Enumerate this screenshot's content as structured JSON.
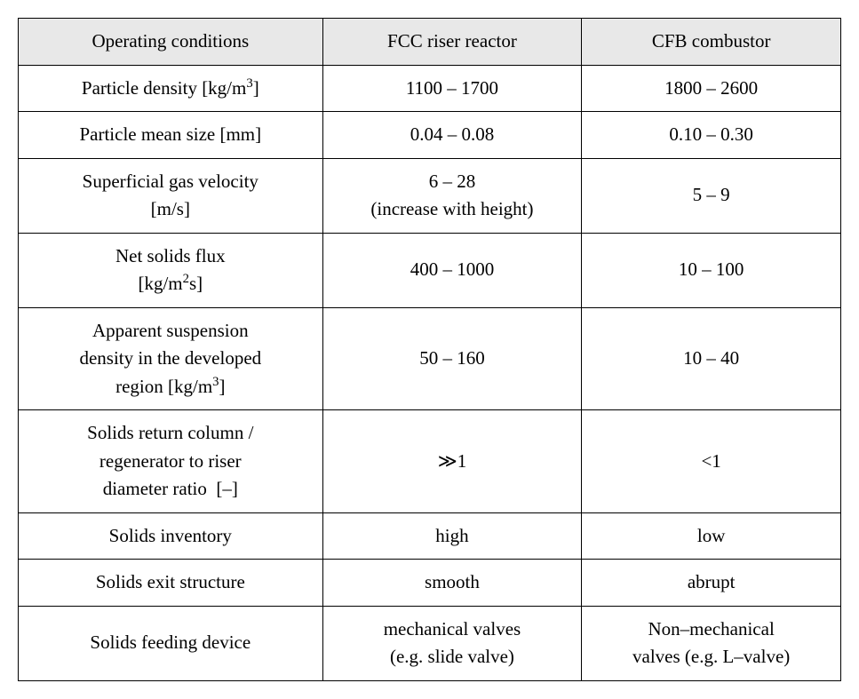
{
  "table": {
    "background_color": "#ffffff",
    "header_bg": "#e8e8e8",
    "border_color": "#000000",
    "font_family": "Times New Roman",
    "font_size": 21,
    "columns": [
      {
        "label": "Operating conditions",
        "width_pct": 37
      },
      {
        "label": "FCC riser reactor",
        "width_pct": 31.5
      },
      {
        "label": "CFB combustor",
        "width_pct": 31.5
      }
    ],
    "rows": [
      {
        "label_html": "Particle density [kg/m<span class=\"sup\">3</span>]",
        "fcc": "1100 – 1700",
        "cfb": "1800 – 2600"
      },
      {
        "label_html": "Particle mean size [mm]",
        "fcc": "0.04 – 0.08",
        "cfb": "0.10 – 0.30"
      },
      {
        "label_html": "Superficial gas velocity<br>[m/s]",
        "fcc": "6 – 28<br>(increase with height)",
        "cfb": "5 – 9"
      },
      {
        "label_html": "Net solids flux<br>[kg/m<span class=\"sup\">2</span>s]",
        "fcc": "400 – 1000",
        "cfb": "10 – 100"
      },
      {
        "label_html": "Apparent suspension<br>density in the developed<br>region [kg/m<span class=\"sup\">3</span>]",
        "fcc": "50 – 160",
        "cfb": "10 – 40"
      },
      {
        "label_html": "Solids return column /<br>regenerator to riser<br>diameter ratio&nbsp;&nbsp;[–]",
        "fcc": "≫1",
        "cfb": "<1"
      },
      {
        "label_html": "Solids inventory",
        "fcc": "high",
        "cfb": "low"
      },
      {
        "label_html": "Solids exit structure",
        "fcc": "smooth",
        "cfb": "abrupt"
      },
      {
        "label_html": "Solids feeding device",
        "fcc": "mechanical valves<br>(e.g. slide valve)",
        "cfb": "Non–mechanical<br>valves (e.g. L–valve)"
      }
    ]
  }
}
